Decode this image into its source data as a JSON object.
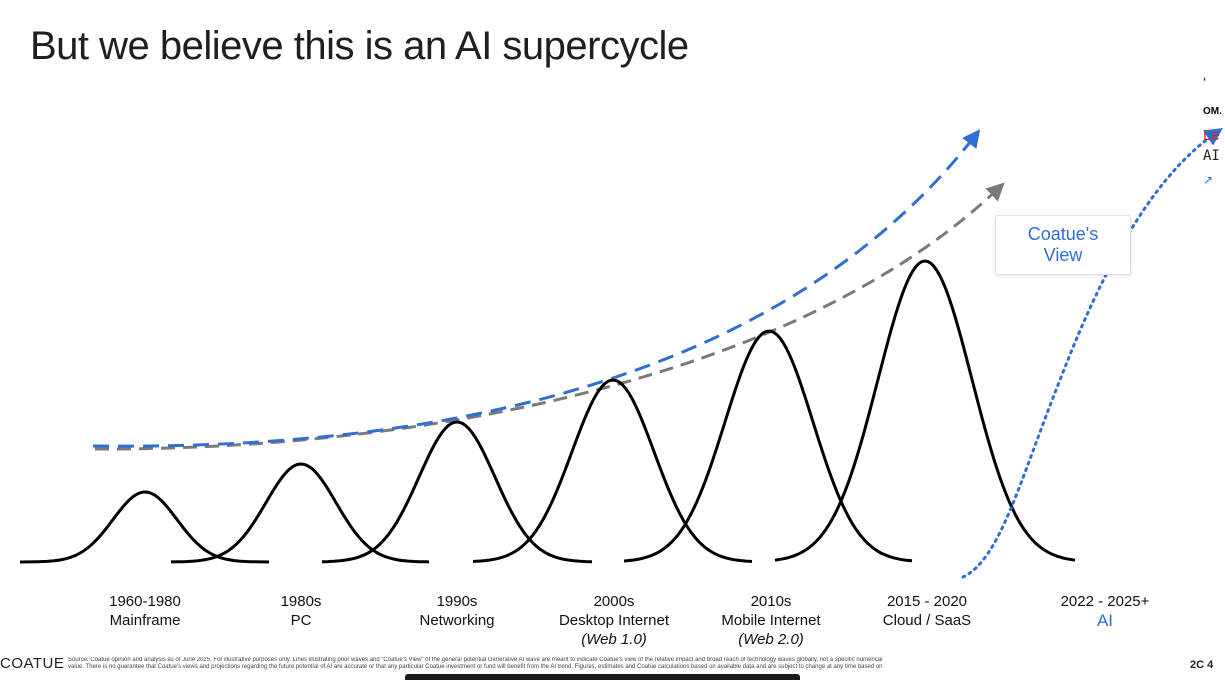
{
  "slide": {
    "title": "But we believe this is an AI supercycle",
    "callout": "Coatue's View",
    "footer_logo": "COATUE",
    "footer_source_line1": "Source: Coatue opinion and analysis as of June 2025. For illustrative purposes only. Lines illustrating prior waves and “Coatue's View” of the general potential Generative AI wave are meant to indicate Coatue's view of the relative impact and broad reach of technology waves globally, not a specific numerical",
    "footer_source_line2": "value. There is no guarantee that Coatue's views and projections regarding the future potential of AI are accurate or that any particular Coatue investment or fund will benefit from the AI trend. Figures, estimates and Coatue calculations based on available data and are subject to change at any time based on",
    "page_number": "2C 4",
    "edge_fragments": [
      "‘",
      "OM.",
      "Le",
      "AI",
      "↗"
    ]
  },
  "chart_data": {
    "type": "line",
    "title": "But we believe this is an AI supercycle",
    "xlabel": "",
    "ylabel": "",
    "grid": false,
    "legend": "none",
    "waves": [
      {
        "era": "1960-1980",
        "name": "Mainframe",
        "sub": "",
        "peak_x": 0,
        "peak": 1.0
      },
      {
        "era": "1980s",
        "name": "PC",
        "sub": "",
        "peak_x": 1,
        "peak": 1.4
      },
      {
        "era": "1990s",
        "name": "Networking",
        "sub": "",
        "peak_x": 2,
        "peak": 2.0
      },
      {
        "era": "2000s",
        "name": "Desktop Internet",
        "sub": "(Web 1.0)",
        "peak_x": 3,
        "peak": 2.6
      },
      {
        "era": "2010s",
        "name": "Mobile Internet",
        "sub": "(Web 2.0)",
        "peak_x": 4,
        "peak": 3.3
      },
      {
        "era": "2015 - 2020",
        "name": "Cloud / SaaS",
        "sub": "",
        "peak_x": 5,
        "peak": 4.3
      }
    ],
    "ai_wave": {
      "era": "2022 - 2025+",
      "name": "AI",
      "style": "dotted",
      "color": "#2f6fd1"
    },
    "trend_lines": [
      {
        "name": "blue dashed trend",
        "color": "#2f6fd1",
        "style": "dashed"
      },
      {
        "name": "gray dashed trend",
        "color": "#7a7a7a",
        "style": "dashed"
      }
    ]
  }
}
